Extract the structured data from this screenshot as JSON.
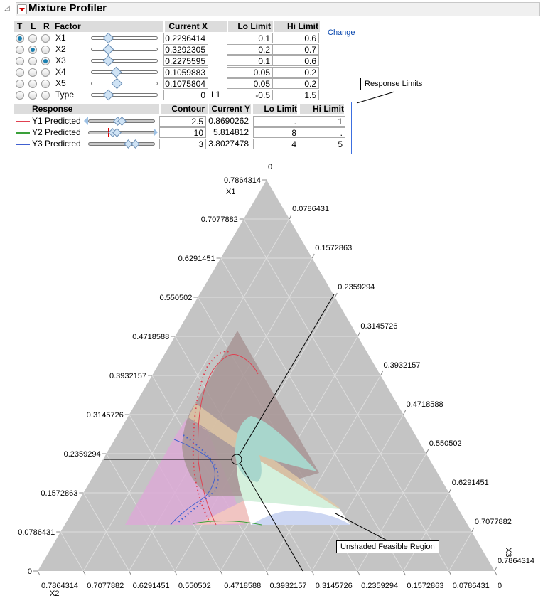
{
  "title": "Mixture Profiler",
  "factor_table": {
    "headers": {
      "t": "T",
      "l": "L",
      "r": "R",
      "factor": "Factor",
      "current_x": "Current X",
      "lo": "Lo Limit",
      "hi": "Hi Limit"
    },
    "change_link": "Change",
    "rows": [
      {
        "factor": "X1",
        "current_x": "0.2296414",
        "unit": "",
        "lo": "0.1",
        "hi": "0.6",
        "axis": "T",
        "slider": 0.26
      },
      {
        "factor": "X2",
        "current_x": "0.3292305",
        "unit": "",
        "lo": "0.2",
        "hi": "0.7",
        "axis": "L",
        "slider": 0.26
      },
      {
        "factor": "X3",
        "current_x": "0.2275595",
        "unit": "",
        "lo": "0.1",
        "hi": "0.6",
        "axis": "R",
        "slider": 0.26
      },
      {
        "factor": "X4",
        "current_x": "0.1059883",
        "unit": "",
        "lo": "0.05",
        "hi": "0.2",
        "axis": "",
        "slider": 0.37
      },
      {
        "factor": "X5",
        "current_x": "0.1075804",
        "unit": "",
        "lo": "0.05",
        "hi": "0.2",
        "axis": "",
        "slider": 0.38
      },
      {
        "factor": "Type",
        "current_x": "0",
        "unit": "L1",
        "lo": "-0.5",
        "hi": "1.5",
        "axis": "",
        "slider": 0.25
      }
    ]
  },
  "response_table": {
    "headers": {
      "response": "Response",
      "contour": "Contour",
      "current_y": "Current Y",
      "lo": "Lo Limit",
      "hi": "Hi Limit"
    },
    "rows": [
      {
        "name": "Y1 Predicted",
        "color": "#e04050",
        "contour": "2.5",
        "current_y": "0.8690262",
        "lo": ".",
        "hi": "1"
      },
      {
        "name": "Y2 Predicted",
        "color": "#3aa03a",
        "contour": "10",
        "current_y": "5.814812",
        "lo": "8",
        "hi": "."
      },
      {
        "name": "Y3 Predicted",
        "color": "#4060d0",
        "contour": "3",
        "current_y": "3.8027478",
        "lo": "4",
        "hi": "5"
      }
    ]
  },
  "annotations": {
    "response_limits": "Response Limits",
    "feasible": "Unshaded Feasible Region"
  },
  "ternary": {
    "axes": {
      "top": "X1",
      "left": "X2",
      "right": "X3"
    },
    "top_label_zero": "0",
    "ticks": [
      "0",
      "0.0786431",
      "0.1572863",
      "0.2359294",
      "0.3145726",
      "0.3932157",
      "0.4718588",
      "0.550502",
      "0.6291451",
      "0.7077882",
      "0.7864314"
    ],
    "current_point": {
      "X1": "0.2296414",
      "X2": "0.3292305",
      "X3": "0.2275595"
    },
    "colors": {
      "background": "#c4c4c4",
      "grid": "#dedede"
    }
  }
}
